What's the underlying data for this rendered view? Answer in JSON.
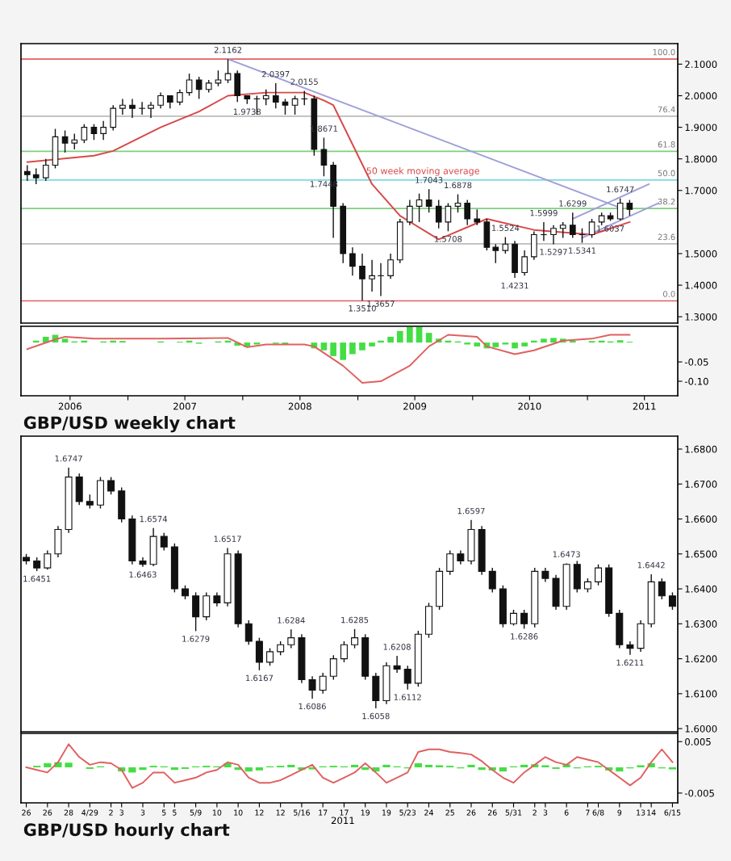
{
  "chart_data": [
    {
      "type": "candlestick",
      "x": [
        "2006-02-15",
        "2006-03-15",
        "2006-04-15",
        "2006-05-15",
        "2006-06-15",
        "2006-07-15",
        "2006-08-15",
        "2006-09-15",
        "2006-10-15",
        "2006-11-15",
        "2006-12-15",
        "2007-01-15",
        "2007-02-15",
        "2007-03-15",
        "2007-04-15",
        "2007-05-15",
        "2007-06-15",
        "2007-07-15",
        "2007-08-15",
        "2007-09-15",
        "2007-10-15",
        "2007-11-15",
        "2007-12-15",
        "2008-01-15",
        "2008-02-15",
        "2008-03-15",
        "2008-04-15",
        "2008-05-15",
        "2008-06-15",
        "2008-07-15",
        "2008-08-15",
        "2008-09-15",
        "2008-10-15",
        "2008-11-15",
        "2008-12-15",
        "2009-01-15",
        "2009-02-15",
        "2009-03-15",
        "2009-04-15",
        "2009-05-15",
        "2009-06-15",
        "2009-07-15",
        "2009-08-15",
        "2009-09-15",
        "2009-10-15",
        "2009-11-15",
        "2009-12-15",
        "2010-01-15",
        "2010-02-15",
        "2010-03-15",
        "2010-04-15",
        "2010-05-15",
        "2010-06-15",
        "2010-07-15",
        "2010-08-15",
        "2010-09-15",
        "2010-10-15",
        "2010-11-15",
        "2010-12-15",
        "2011-01-15",
        "2011-02-15",
        "2011-03-15",
        "2011-04-15",
        "2011-05-15"
      ],
      "ohlc": [
        [
          1.76,
          1.78,
          1.73,
          1.75
        ],
        [
          1.75,
          1.77,
          1.72,
          1.74
        ],
        [
          1.74,
          1.8,
          1.73,
          1.78
        ],
        [
          1.78,
          1.895,
          1.77,
          1.87
        ],
        [
          1.87,
          1.89,
          1.82,
          1.85
        ],
        [
          1.85,
          1.88,
          1.83,
          1.86
        ],
        [
          1.86,
          1.91,
          1.85,
          1.9
        ],
        [
          1.9,
          1.91,
          1.86,
          1.88
        ],
        [
          1.88,
          1.92,
          1.86,
          1.9
        ],
        [
          1.9,
          1.97,
          1.89,
          1.96
        ],
        [
          1.96,
          1.99,
          1.94,
          1.97
        ],
        [
          1.97,
          1.99,
          1.93,
          1.96
        ],
        [
          1.96,
          1.98,
          1.94,
          1.96
        ],
        [
          1.96,
          1.98,
          1.93,
          1.97
        ],
        [
          1.97,
          2.01,
          1.96,
          2.0
        ],
        [
          2.0,
          2.0,
          1.96,
          1.98
        ],
        [
          1.98,
          2.02,
          1.97,
          2.01
        ],
        [
          2.01,
          2.07,
          2.0,
          2.05
        ],
        [
          2.05,
          2.06,
          1.99,
          2.02
        ],
        [
          2.02,
          2.05,
          2.01,
          2.04
        ],
        [
          2.04,
          2.08,
          2.03,
          2.05
        ],
        [
          2.05,
          2.1162,
          2.04,
          2.07
        ],
        [
          2.07,
          2.08,
          1.98,
          2.0
        ],
        [
          2.0,
          2.0,
          1.9738,
          1.99
        ],
        [
          1.99,
          2.0,
          1.94,
          1.99
        ],
        [
          1.99,
          2.02,
          1.97,
          2.0
        ],
        [
          2.0,
          2.0397,
          1.96,
          1.98
        ],
        [
          1.98,
          1.99,
          1.94,
          1.97
        ],
        [
          1.97,
          2.0,
          1.94,
          1.99
        ],
        [
          1.99,
          2.0155,
          1.97,
          1.99
        ],
        [
          1.99,
          2.0,
          1.81,
          1.83
        ],
        [
          1.83,
          1.8671,
          1.7448,
          1.78
        ],
        [
          1.78,
          1.79,
          1.55,
          1.65
        ],
        [
          1.65,
          1.66,
          1.47,
          1.5
        ],
        [
          1.5,
          1.52,
          1.43,
          1.46
        ],
        [
          1.46,
          1.5,
          1.351,
          1.42
        ],
        [
          1.42,
          1.48,
          1.38,
          1.43
        ],
        [
          1.43,
          1.47,
          1.3657,
          1.43
        ],
        [
          1.43,
          1.5,
          1.42,
          1.48
        ],
        [
          1.48,
          1.61,
          1.47,
          1.6
        ],
        [
          1.6,
          1.67,
          1.59,
          1.65
        ],
        [
          1.65,
          1.69,
          1.6,
          1.67
        ],
        [
          1.67,
          1.7043,
          1.63,
          1.65
        ],
        [
          1.65,
          1.67,
          1.58,
          1.6
        ],
        [
          1.6,
          1.66,
          1.5708,
          1.65
        ],
        [
          1.65,
          1.6878,
          1.63,
          1.66
        ],
        [
          1.66,
          1.67,
          1.59,
          1.61
        ],
        [
          1.61,
          1.64,
          1.59,
          1.6
        ],
        [
          1.6,
          1.61,
          1.51,
          1.52
        ],
        [
          1.52,
          1.53,
          1.47,
          1.51
        ],
        [
          1.51,
          1.5524,
          1.5,
          1.53
        ],
        [
          1.53,
          1.54,
          1.4231,
          1.44
        ],
        [
          1.44,
          1.51,
          1.43,
          1.49
        ],
        [
          1.49,
          1.57,
          1.48,
          1.56
        ],
        [
          1.56,
          1.5999,
          1.54,
          1.56
        ],
        [
          1.56,
          1.59,
          1.5297,
          1.58
        ],
        [
          1.58,
          1.6,
          1.55,
          1.59
        ],
        [
          1.59,
          1.6299,
          1.55,
          1.56
        ],
        [
          1.56,
          1.58,
          1.5341,
          1.56
        ],
        [
          1.56,
          1.61,
          1.55,
          1.6
        ],
        [
          1.6,
          1.63,
          1.59,
          1.62
        ],
        [
          1.62,
          1.63,
          1.6037,
          1.61
        ],
        [
          1.61,
          1.6747,
          1.605,
          1.66
        ],
        [
          1.66,
          1.67,
          1.62,
          1.64
        ]
      ],
      "series": [
        {
          "name": "50 week moving average",
          "type": "line",
          "color": "#d84848",
          "x": [
            "2006-02-15",
            "2006-09-15",
            "2006-11-15",
            "2007-04-15",
            "2007-08-15",
            "2007-11-15",
            "2008-03-15",
            "2008-07-15",
            "2008-09-15",
            "2008-10-15",
            "2009-02-15",
            "2009-05-15",
            "2009-09-15",
            "2010-02-15",
            "2010-07-15",
            "2011-01-15",
            "2011-05-15"
          ],
          "values": [
            1.79,
            1.81,
            1.825,
            1.9,
            1.95,
            2.0,
            2.01,
            2.01,
            1.985,
            1.97,
            1.72,
            1.62,
            1.545,
            1.61,
            1.575,
            1.56,
            1.6
          ]
        },
        {
          "type": "line",
          "color": "#9fa0d8",
          "x": [
            "2007-11-15",
            "2011-04-15"
          ],
          "values": [
            2.116,
            1.645
          ]
        },
        {
          "type": "line",
          "color": "#9fa0d8",
          "x": [
            "2010-11-15",
            "2011-07-15"
          ],
          "values": [
            1.61,
            1.72
          ]
        },
        {
          "type": "line",
          "color": "#9fa0d8",
          "x": [
            "2010-12-15",
            "2011-08-15"
          ],
          "values": [
            1.55,
            1.66
          ]
        }
      ],
      "ref_lines": [
        {
          "axis": "y",
          "value": 2.1162,
          "color": "#e06060"
        },
        {
          "axis": "y",
          "value": 1.935,
          "color": "#bbbbbb"
        },
        {
          "axis": "y",
          "value": 1.824,
          "color": "#7fcf7f"
        },
        {
          "axis": "y",
          "value": 1.733,
          "color": "#7fd8e0"
        },
        {
          "axis": "y",
          "value": 1.643,
          "color": "#7fcf7f"
        },
        {
          "axis": "y",
          "value": 1.531,
          "color": "#bbbbbb"
        },
        {
          "axis": "y",
          "value": 1.3503,
          "color": "#e06060"
        }
      ],
      "annotations": [
        {
          "text": "2.1162",
          "x": "2007-11-15",
          "y": 2.1162
        },
        {
          "text": "2.0397",
          "x": "2008-04-15",
          "y": 2.0397
        },
        {
          "text": "1.9738",
          "x": "2008-01-15",
          "y": 1.9738
        },
        {
          "text": "2.0155",
          "x": "2008-07-15",
          "y": 2.0155
        },
        {
          "text": "1.8671",
          "x": "2008-09-15",
          "y": 1.8671
        },
        {
          "text": "1.7448",
          "x": "2008-09-15",
          "y": 1.7448
        },
        {
          "text": "1.3510",
          "x": "2009-01-15",
          "y": 1.351
        },
        {
          "text": "1.3657",
          "x": "2009-03-15",
          "y": 1.3657
        },
        {
          "text": "1.7043",
          "x": "2009-08-15",
          "y": 1.7043
        },
        {
          "text": "1.5708",
          "x": "2009-10-15",
          "y": 1.5708
        },
        {
          "text": "1.6878",
          "x": "2009-11-15",
          "y": 1.6878
        },
        {
          "text": "1.5524",
          "x": "2010-04-15",
          "y": 1.5524
        },
        {
          "text": "1.4231",
          "x": "2010-05-15",
          "y": 1.4231
        },
        {
          "text": "1.5999",
          "x": "2010-08-15",
          "y": 1.5999
        },
        {
          "text": "1.5297",
          "x": "2010-09-15",
          "y": 1.5297
        },
        {
          "text": "1.6299",
          "x": "2010-11-15",
          "y": 1.6299
        },
        {
          "text": "1.5341",
          "x": "2010-12-15",
          "y": 1.5341
        },
        {
          "text": "1.6037",
          "x": "2011-03-15",
          "y": 1.6037
        },
        {
          "text": "1.6747",
          "x": "2011-04-15",
          "y": 1.6747
        },
        {
          "text": "100.0",
          "x": "2011-10-15",
          "y": 2.1162
        },
        {
          "text": "76.4",
          "x": "2011-10-15",
          "y": 1.935
        },
        {
          "text": "61.8",
          "x": "2011-10-15",
          "y": 1.824
        },
        {
          "text": "50.0",
          "x": "2011-10-15",
          "y": 1.733
        },
        {
          "text": "38.2",
          "x": "2011-10-15",
          "y": 1.643
        },
        {
          "text": "23.6",
          "x": "2011-10-15",
          "y": 1.531
        },
        {
          "text": "0.0",
          "x": "2011-10-15",
          "y": 1.3503
        }
      ],
      "xlim": [
        "2006-01-26",
        "2011-10-15"
      ],
      "ylim": [
        1.28,
        2.165
      ],
      "yticks": [
        {
          "value": 1.3,
          "label": "1.3000"
        },
        {
          "value": 1.4,
          "label": "1.4000"
        },
        {
          "value": 1.5,
          "label": "1.5000"
        },
        {
          "value": 1.7,
          "label": "1.7000"
        },
        {
          "value": 1.8,
          "label": "1.8000"
        },
        {
          "value": 1.9,
          "label": "1.9000"
        },
        {
          "value": 2.0,
          "label": "2.0000"
        },
        {
          "value": 2.1,
          "label": "2.1000"
        }
      ],
      "tick_labels": "y"
    },
    {
      "type": "bar",
      "series": [
        {
          "type": "bar",
          "color": "#44dd44",
          "x": [
            "2006-02-15",
            "2006-03-15",
            "2006-04-15",
            "2006-05-15",
            "2006-06-15",
            "2006-07-15",
            "2006-08-15",
            "2006-09-15",
            "2006-10-15",
            "2006-11-15",
            "2006-12-15",
            "2007-01-15",
            "2007-02-15",
            "2007-03-15",
            "2007-04-15",
            "2007-05-15",
            "2007-06-15",
            "2007-07-15",
            "2007-08-15",
            "2007-09-15",
            "2007-10-15",
            "2007-11-15",
            "2007-12-15",
            "2008-01-15",
            "2008-02-15",
            "2008-03-15",
            "2008-04-15",
            "2008-05-15",
            "2008-06-15",
            "2008-07-15",
            "2008-08-15",
            "2008-09-15",
            "2008-10-15",
            "2008-11-15",
            "2008-12-15",
            "2009-01-15",
            "2009-02-15",
            "2009-03-15",
            "2009-04-15",
            "2009-05-15",
            "2009-06-15",
            "2009-07-15",
            "2009-08-15",
            "2009-09-15",
            "2009-10-15",
            "2009-11-15",
            "2009-12-15",
            "2010-01-15",
            "2010-02-15",
            "2010-03-15",
            "2010-04-15",
            "2010-05-15",
            "2010-06-15",
            "2010-07-15",
            "2010-08-15",
            "2010-09-15",
            "2010-10-15",
            "2010-11-15",
            "2010-12-15",
            "2011-01-15",
            "2011-02-15",
            "2011-03-15",
            "2011-04-15",
            "2011-05-15"
          ],
          "values": [
            0,
            0.005,
            0.015,
            0.02,
            0.01,
            0.003,
            0.005,
            0,
            0.003,
            0.005,
            0.004,
            0,
            0,
            0,
            0.003,
            0,
            0.002,
            0.005,
            -0.003,
            0,
            0.003,
            0.005,
            -0.008,
            -0.012,
            -0.005,
            0,
            -0.003,
            -0.004,
            0,
            0,
            -0.015,
            -0.02,
            -0.035,
            -0.045,
            -0.03,
            -0.02,
            -0.01,
            0.005,
            0.015,
            0.03,
            0.04,
            0.04,
            0.025,
            0.01,
            0.005,
            0.003,
            -0.005,
            -0.01,
            -0.015,
            -0.012,
            -0.005,
            -0.015,
            -0.01,
            0.005,
            0.01,
            0.012,
            0.01,
            0.005,
            0,
            0.004,
            0.005,
            0.003,
            0.006,
            0.002
          ]
        },
        {
          "type": "line",
          "color": "#e06060",
          "x": [
            "2006-02-15",
            "2006-05-15",
            "2006-06-15",
            "2006-09-15",
            "2007-04-15",
            "2007-11-15",
            "2008-01-15",
            "2008-03-15",
            "2008-07-15",
            "2008-08-15",
            "2008-11-15",
            "2009-01-15",
            "2009-03-15",
            "2009-06-15",
            "2009-08-15",
            "2009-10-15",
            "2010-01-15",
            "2010-02-15",
            "2010-05-15",
            "2010-07-15",
            "2010-10-15",
            "2011-01-15",
            "2011-03-15",
            "2011-05-15"
          ],
          "values": [
            -0.017,
            0.008,
            0.015,
            0.01,
            0.01,
            0.012,
            -0.012,
            -0.005,
            -0.005,
            -0.01,
            -0.06,
            -0.104,
            -0.1,
            -0.06,
            -0.01,
            0.02,
            0.015,
            -0.01,
            -0.03,
            -0.02,
            0.005,
            0.01,
            0.02,
            0.02
          ]
        }
      ],
      "xlim": [
        "2006-01-26",
        "2011-10-15"
      ],
      "xticks": [
        {
          "value": "2006-07-01",
          "label": "2006"
        },
        {
          "value": "2007-07-01",
          "label": "2007"
        },
        {
          "value": "2008-07-01",
          "label": "2008"
        },
        {
          "value": "2009-07-01",
          "label": "2009"
        },
        {
          "value": "2010-07-01",
          "label": "2010"
        },
        {
          "value": "2011-07-01",
          "label": "2011"
        },
        {
          "value": "2007-01-01",
          "label": null
        },
        {
          "value": "2008-01-01",
          "label": null
        },
        {
          "value": "2009-01-01",
          "label": null
        },
        {
          "value": "2010-01-01",
          "label": null
        },
        {
          "value": "2011-01-01",
          "label": null
        }
      ],
      "ylim": [
        -0.1375,
        0.042
      ],
      "yticks": [
        {
          "value": -0.1,
          "label": "-0.10"
        },
        {
          "value": -0.05,
          "label": "-0.05"
        }
      ],
      "annotations": [
        "GBP/USD weekly chart"
      ]
    },
    {
      "type": "candlestick",
      "categories": [
        null,
        null,
        null,
        null,
        null,
        null,
        null,
        null,
        null,
        null,
        null,
        null,
        null,
        null,
        null,
        null,
        null,
        null,
        null,
        null,
        null,
        null,
        null,
        null,
        null,
        null,
        null,
        null,
        null,
        null,
        null,
        null,
        null,
        null,
        null,
        null,
        null,
        null,
        null,
        null,
        null,
        null,
        null,
        null,
        null,
        null,
        null,
        null,
        null,
        null,
        null,
        null,
        null,
        null,
        null,
        null,
        null,
        null,
        null,
        null,
        null,
        null
      ],
      "ohlc": [
        [
          1.649,
          1.65,
          1.647,
          1.648
        ],
        [
          1.648,
          1.649,
          1.6451,
          1.646
        ],
        [
          1.646,
          1.651,
          1.6455,
          1.65
        ],
        [
          1.65,
          1.658,
          1.649,
          1.657
        ],
        [
          1.657,
          1.6747,
          1.656,
          1.672
        ],
        [
          1.672,
          1.673,
          1.664,
          1.665
        ],
        [
          1.665,
          1.667,
          1.663,
          1.664
        ],
        [
          1.664,
          1.672,
          1.663,
          1.671
        ],
        [
          1.671,
          1.672,
          1.667,
          1.668
        ],
        [
          1.668,
          1.669,
          1.659,
          1.66
        ],
        [
          1.66,
          1.661,
          1.647,
          1.648
        ],
        [
          1.648,
          1.649,
          1.6463,
          1.647
        ],
        [
          1.647,
          1.6574,
          1.6465,
          1.655
        ],
        [
          1.655,
          1.656,
          1.651,
          1.652
        ],
        [
          1.652,
          1.653,
          1.639,
          1.64
        ],
        [
          1.64,
          1.641,
          1.637,
          1.638
        ],
        [
          1.638,
          1.639,
          1.6279,
          1.632
        ],
        [
          1.632,
          1.639,
          1.631,
          1.638
        ],
        [
          1.638,
          1.639,
          1.635,
          1.636
        ],
        [
          1.636,
          1.6517,
          1.635,
          1.65
        ],
        [
          1.65,
          1.651,
          1.629,
          1.63
        ],
        [
          1.63,
          1.631,
          1.624,
          1.625
        ],
        [
          1.625,
          1.626,
          1.6167,
          1.619
        ],
        [
          1.619,
          1.623,
          1.618,
          1.622
        ],
        [
          1.622,
          1.625,
          1.621,
          1.624
        ],
        [
          1.624,
          1.6284,
          1.623,
          1.626
        ],
        [
          1.626,
          1.627,
          1.613,
          1.614
        ],
        [
          1.614,
          1.615,
          1.6086,
          1.611
        ],
        [
          1.611,
          1.616,
          1.61,
          1.615
        ],
        [
          1.615,
          1.621,
          1.614,
          1.62
        ],
        [
          1.62,
          1.625,
          1.619,
          1.624
        ],
        [
          1.624,
          1.6285,
          1.623,
          1.626
        ],
        [
          1.626,
          1.627,
          1.614,
          1.615
        ],
        [
          1.615,
          1.616,
          1.6058,
          1.608
        ],
        [
          1.608,
          1.619,
          1.607,
          1.618
        ],
        [
          1.618,
          1.6208,
          1.616,
          1.617
        ],
        [
          1.617,
          1.618,
          1.6112,
          1.613
        ],
        [
          1.613,
          1.628,
          1.612,
          1.627
        ],
        [
          1.627,
          1.636,
          1.626,
          1.635
        ],
        [
          1.635,
          1.646,
          1.634,
          1.645
        ],
        [
          1.645,
          1.651,
          1.644,
          1.65
        ],
        [
          1.65,
          1.651,
          1.647,
          1.648
        ],
        [
          1.648,
          1.6597,
          1.647,
          1.657
        ],
        [
          1.657,
          1.658,
          1.644,
          1.645
        ],
        [
          1.645,
          1.646,
          1.639,
          1.64
        ],
        [
          1.64,
          1.641,
          1.629,
          1.63
        ],
        [
          1.63,
          1.634,
          1.6295,
          1.633
        ],
        [
          1.633,
          1.634,
          1.6286,
          1.63
        ],
        [
          1.63,
          1.646,
          1.629,
          1.645
        ],
        [
          1.645,
          1.646,
          1.642,
          1.643
        ],
        [
          1.643,
          1.644,
          1.634,
          1.635
        ],
        [
          1.635,
          1.6473,
          1.634,
          1.647
        ],
        [
          1.647,
          1.648,
          1.639,
          1.64
        ],
        [
          1.64,
          1.643,
          1.639,
          1.642
        ],
        [
          1.642,
          1.647,
          1.641,
          1.646
        ],
        [
          1.646,
          1.647,
          1.632,
          1.633
        ],
        [
          1.633,
          1.634,
          1.623,
          1.624
        ],
        [
          1.624,
          1.625,
          1.6211,
          1.623
        ],
        [
          1.623,
          1.631,
          1.622,
          1.63
        ],
        [
          1.63,
          1.6442,
          1.629,
          1.642
        ],
        [
          1.642,
          1.643,
          1.637,
          1.638
        ],
        [
          1.638,
          1.639,
          1.634,
          1.635
        ]
      ],
      "annotations": [
        {
          "text": "1.6451",
          "y": 1.6451
        },
        {
          "text": "1.6747",
          "y": 1.6747
        },
        {
          "text": "1.6463",
          "y": 1.6463
        },
        {
          "text": "1.6574",
          "y": 1.6574
        },
        {
          "text": "1.6279",
          "y": 1.6279
        },
        {
          "text": "1.6517",
          "y": 1.6517
        },
        {
          "text": "1.6167",
          "y": 1.6167
        },
        {
          "text": "1.6284",
          "y": 1.6284
        },
        {
          "text": "1.6086",
          "y": 1.6086
        },
        {
          "text": "1.6285",
          "y": 1.6285
        },
        {
          "text": "1.6058",
          "y": 1.6058
        },
        {
          "text": "1.6208",
          "y": 1.6208
        },
        {
          "text": "1.6112",
          "y": 1.6112
        },
        {
          "text": "1.6597",
          "y": 1.6597
        },
        {
          "text": "1.6286",
          "y": 1.6286
        },
        {
          "text": "1.6473",
          "y": 1.6473
        },
        {
          "text": "1.6211",
          "y": 1.6211
        },
        {
          "text": "1.6442",
          "y": 1.6442
        }
      ],
      "ylim": [
        1.5991,
        1.6837
      ],
      "yticks": [
        {
          "value": 1.6,
          "label": "1.6000"
        },
        {
          "value": 1.61,
          "label": "1.6100"
        },
        {
          "value": 1.62,
          "label": "1.6200"
        },
        {
          "value": 1.63,
          "label": "1.6300"
        },
        {
          "value": 1.64,
          "label": "1.6400"
        },
        {
          "value": 1.65,
          "label": "1.6500"
        },
        {
          "value": 1.66,
          "label": "1.6600"
        },
        {
          "value": 1.67,
          "label": "1.6700"
        },
        {
          "value": 1.68,
          "label": "1.6800"
        }
      ],
      "tick_labels": "y"
    },
    {
      "type": "bar",
      "categories": [
        "26",
        null,
        "26",
        null,
        "28",
        null,
        "4/29",
        null,
        "2",
        "3",
        null,
        "3",
        null,
        "5",
        "5",
        null,
        "5/9",
        null,
        "10",
        null,
        "10",
        null,
        "12",
        null,
        "12",
        null,
        "5/16",
        null,
        "17",
        null,
        "17",
        null,
        "19",
        null,
        "19",
        null,
        "5/23",
        null,
        "24",
        null,
        "25",
        null,
        "26",
        null,
        "26",
        null,
        "5/31",
        null,
        "2",
        "3",
        null,
        "6",
        null,
        "7",
        "6/8",
        null,
        "9",
        null,
        "13",
        "14",
        null,
        "6/15"
      ],
      "series": [
        {
          "type": "bar",
          "color": "#44dd44",
          "values": [
            0,
            0.0003,
            0.0008,
            0.001,
            0.0009,
            0,
            -0.0003,
            0.0002,
            0,
            -0.0008,
            -0.001,
            -0.0005,
            0.0003,
            0.0002,
            -0.0005,
            -0.0003,
            0.0002,
            0.0003,
            0.0002,
            0.0008,
            -0.0005,
            -0.0008,
            -0.0006,
            0.0002,
            0.0003,
            0.0005,
            -0.0005,
            -0.0004,
            0.0002,
            0.0003,
            0.0002,
            0.0005,
            -0.0005,
            -0.0008,
            0.0005,
            0.0002,
            -0.0002,
            0.0008,
            0.0005,
            0.0004,
            0.0003,
            -0.0002,
            0.0005,
            -0.0005,
            -0.0006,
            -0.0008,
            0.0002,
            0.0005,
            0.0006,
            0.0004,
            -0.0003,
            0.0006,
            -0.0002,
            0.0002,
            0.0003,
            -0.0006,
            -0.0008,
            -0.0002,
            0.0004,
            0.0008,
            -0.0002,
            -0.0004
          ]
        },
        {
          "type": "line",
          "color": "#e06060",
          "values": [
            0,
            -0.0005,
            -0.001,
            0.001,
            0.0045,
            0.002,
            0.0005,
            0.001,
            0.0008,
            -0.0005,
            -0.004,
            -0.003,
            -0.001,
            -0.001,
            -0.003,
            -0.0025,
            -0.002,
            -0.001,
            -0.0005,
            0.001,
            0.0005,
            -0.002,
            -0.003,
            -0.003,
            -0.0025,
            -0.0015,
            -0.0005,
            0.0005,
            -0.002,
            -0.003,
            -0.002,
            -0.001,
            0.0008,
            -0.001,
            -0.003,
            -0.002,
            -0.001,
            0.003,
            0.0035,
            0.0035,
            0.003,
            0.0028,
            0.0025,
            0.0012,
            -0.0005,
            -0.002,
            -0.003,
            -0.001,
            0.0005,
            0.002,
            0.001,
            0.0005,
            0.002,
            0.0015,
            0.001,
            -0.0005,
            -0.002,
            -0.0035,
            -0.002,
            0.001,
            0.0035,
            0.001
          ]
        }
      ],
      "xlabel": "2011",
      "ylim": [
        -0.0069,
        0.0066
      ],
      "yticks": [
        {
          "value": -0.005,
          "label": "-0.005"
        },
        {
          "value": 0.005,
          "label": "0.005"
        }
      ],
      "annotations": [
        "GBP/USD hourly chart"
      ]
    }
  ]
}
